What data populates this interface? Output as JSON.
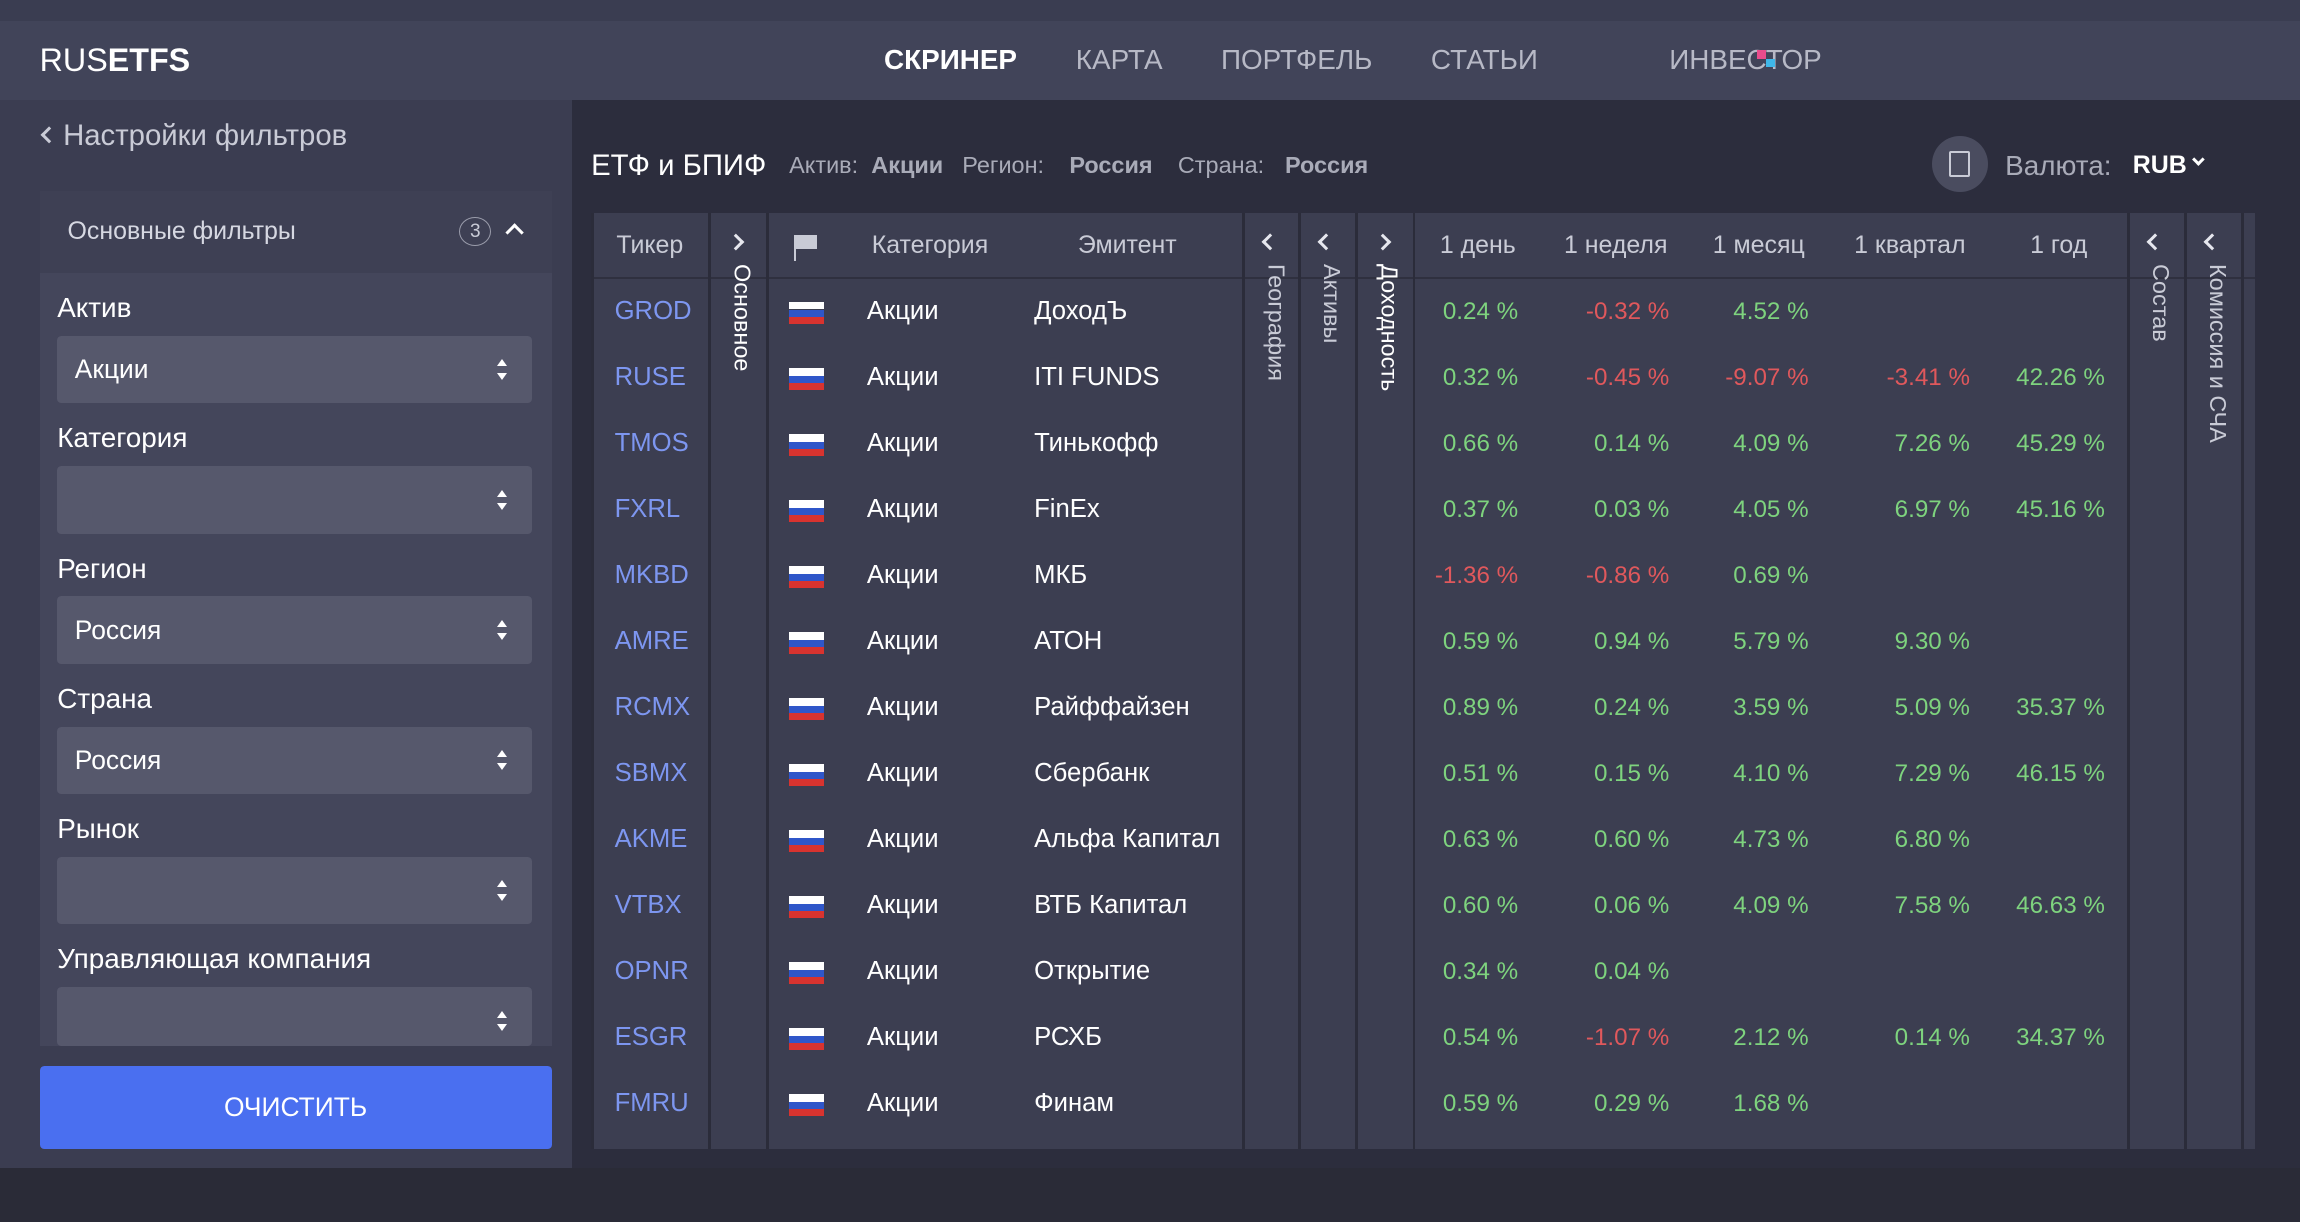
{
  "header": {
    "logo_light": "RUS",
    "logo_bold": "ETFS",
    "nav": [
      "СКРИНЕР",
      "КАРТА",
      "ПОРТФЕЛЬ",
      "СТАТЬИ",
      "ИНВЕСТОР"
    ]
  },
  "sidebar": {
    "back": "Настройки фильтров",
    "section": "Основные фильтры",
    "section_count": "3",
    "filters": [
      {
        "label": "Актив",
        "value": "Акции"
      },
      {
        "label": "Категория",
        "value": null
      },
      {
        "label": "Регион",
        "value": "Россия"
      },
      {
        "label": "Страна",
        "value": "Россия"
      },
      {
        "label": "Рынок",
        "value": null
      },
      {
        "label": "Управляющая компания",
        "value": null
      }
    ],
    "clear": "ОЧИСТИТЬ"
  },
  "main": {
    "title": "ЕТФ и БПИФ",
    "chips": [
      {
        "label": "Актив:",
        "value": "Акции"
      },
      {
        "label": "Регион:",
        "value": "Россия"
      },
      {
        "label": "Страна:",
        "value": "Россия"
      }
    ],
    "currency_label": "Валюта:",
    "currency": "RUB"
  },
  "table": {
    "columns": [
      "Тикер",
      "Категория",
      "Эмитент",
      "1 день",
      "1 неделя",
      "1 месяц",
      "1 квартал",
      "1 год"
    ],
    "groups": [
      "Основное",
      "География",
      "Активы",
      "Доходность",
      "Состав",
      "Комиссия и СЧА"
    ],
    "rows": [
      [
        "GROD",
        "Акции",
        "ДоходЪ",
        "0.24 %",
        "-0.32 %",
        "4.52 %",
        null,
        null
      ],
      [
        "RUSE",
        "Акции",
        "ITI FUNDS",
        "0.32 %",
        "-0.45 %",
        "-9.07 %",
        "-3.41 %",
        "42.26 %"
      ],
      [
        "TMOS",
        "Акции",
        "Тинькофф",
        "0.66 %",
        "0.14 %",
        "4.09 %",
        "7.26 %",
        "45.29 %"
      ],
      [
        "FXRL",
        "Акции",
        "FinEx",
        "0.37 %",
        "0.03 %",
        "4.05 %",
        "6.97 %",
        "45.16 %"
      ],
      [
        "MKBD",
        "Акции",
        "МКБ",
        "-1.36 %",
        "-0.86 %",
        "0.69 %",
        null,
        null
      ],
      [
        "AMRE",
        "Акции",
        "АТОН",
        "0.59 %",
        "0.94 %",
        "5.79 %",
        "9.30 %",
        null
      ],
      [
        "RCMX",
        "Акции",
        "Райффайзен",
        "0.89 %",
        "0.24 %",
        "3.59 %",
        "5.09 %",
        "35.37 %"
      ],
      [
        "SBMX",
        "Акции",
        "Сбербанк",
        "0.51 %",
        "0.15 %",
        "4.10 %",
        "7.29 %",
        "46.15 %"
      ],
      [
        "AKME",
        "Акции",
        "Альфа Капитал",
        "0.63 %",
        "0.60 %",
        "4.73 %",
        "6.80 %",
        null
      ],
      [
        "VTBX",
        "Акции",
        "ВТБ Капитал",
        "0.60 %",
        "0.06 %",
        "4.09 %",
        "7.58 %",
        "46.63 %"
      ],
      [
        "OPNR",
        "Акции",
        "Открытие",
        "0.34 %",
        "0.04 %",
        null,
        null,
        null
      ],
      [
        "ESGR",
        "Акции",
        "РСХБ",
        "0.54 %",
        "-1.07 %",
        "2.12 %",
        "0.14 %",
        "34.37 %"
      ],
      [
        "FMRU",
        "Акции",
        "Финам",
        "0.59 %",
        "0.29 %",
        "1.68 %",
        null,
        null
      ]
    ]
  }
}
